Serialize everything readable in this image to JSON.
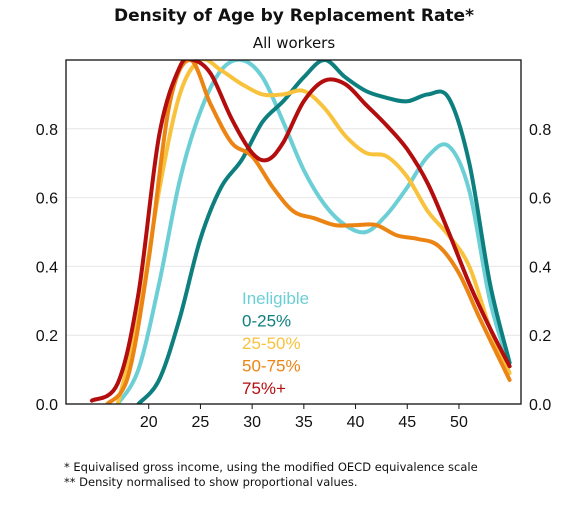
{
  "title": "Density of Age by Replacement Rate*",
  "subtitle": "All workers",
  "footnotes": [
    "* Equivalised gross income, using the modified OECD equivalence scale",
    "** Density normalised to show proportional values."
  ],
  "chart_data": {
    "type": "line",
    "title": "Density of Age by Replacement Rate*",
    "subtitle": "All workers",
    "xlabel": "",
    "ylabel": "",
    "xlim": [
      12,
      56
    ],
    "ylim": [
      0,
      1
    ],
    "x_ticks": [
      20,
      25,
      30,
      35,
      40,
      45,
      50
    ],
    "y_ticks": [
      0.0,
      0.2,
      0.4,
      0.6,
      0.8
    ],
    "y_tick_labels": [
      "0.0",
      "0.2",
      "0.4",
      "0.6",
      "0.8"
    ],
    "y_axis_both_sides": true,
    "grid": "horizontal",
    "legend_position": "inside-bottom-center",
    "series": [
      {
        "name": "Ineligible",
        "color": "#6ccfd6",
        "x": [
          17,
          19,
          21,
          23,
          25,
          27,
          29,
          31,
          33,
          35,
          37,
          39,
          41,
          43,
          45,
          47,
          49,
          51,
          53,
          54.9
        ],
        "y": [
          0.0,
          0.1,
          0.35,
          0.65,
          0.85,
          0.97,
          1.0,
          0.95,
          0.82,
          0.68,
          0.58,
          0.52,
          0.5,
          0.55,
          0.63,
          0.72,
          0.75,
          0.62,
          0.3,
          0.11
        ]
      },
      {
        "name": "0-25%",
        "color": "#0e7f7f",
        "x": [
          19,
          21,
          23,
          25,
          27,
          29,
          31,
          33,
          35,
          37,
          39,
          41,
          43,
          45,
          47,
          49,
          51,
          53,
          54.9
        ],
        "y": [
          0.0,
          0.07,
          0.25,
          0.48,
          0.63,
          0.71,
          0.82,
          0.88,
          0.95,
          1.0,
          0.95,
          0.91,
          0.89,
          0.88,
          0.9,
          0.89,
          0.7,
          0.35,
          0.12
        ]
      },
      {
        "name": "25-50%",
        "color": "#f9c23c",
        "x": [
          17,
          19,
          21,
          23,
          25,
          27,
          29,
          31,
          33,
          35,
          37,
          39,
          41,
          43,
          45,
          47,
          49,
          51,
          53,
          54.9
        ],
        "y": [
          0.0,
          0.25,
          0.62,
          0.9,
          1.0,
          0.97,
          0.93,
          0.9,
          0.9,
          0.91,
          0.86,
          0.78,
          0.73,
          0.72,
          0.66,
          0.56,
          0.49,
          0.4,
          0.22,
          0.09
        ]
      },
      {
        "name": "50-75%",
        "color": "#ec8414",
        "x": [
          16,
          18,
          20,
          22,
          24,
          26,
          28,
          30,
          32,
          34,
          36,
          38,
          40,
          42,
          44,
          46,
          48,
          50,
          52,
          54.9
        ],
        "y": [
          0.0,
          0.08,
          0.42,
          0.87,
          1.0,
          0.87,
          0.76,
          0.72,
          0.63,
          0.56,
          0.54,
          0.52,
          0.52,
          0.52,
          0.49,
          0.48,
          0.46,
          0.38,
          0.25,
          0.07
        ]
      },
      {
        "name": "75%+",
        "color": "#b30d0d",
        "x": [
          14.5,
          17,
          19,
          21,
          23,
          24.3,
          26,
          28,
          30,
          31.5,
          33,
          35,
          37,
          39,
          41,
          43,
          45,
          47,
          49,
          51,
          53,
          54.9
        ],
        "y": [
          0.01,
          0.06,
          0.32,
          0.78,
          0.98,
          1.0,
          0.96,
          0.83,
          0.73,
          0.71,
          0.76,
          0.88,
          0.94,
          0.93,
          0.87,
          0.81,
          0.74,
          0.64,
          0.5,
          0.35,
          0.22,
          0.11
        ]
      }
    ]
  }
}
